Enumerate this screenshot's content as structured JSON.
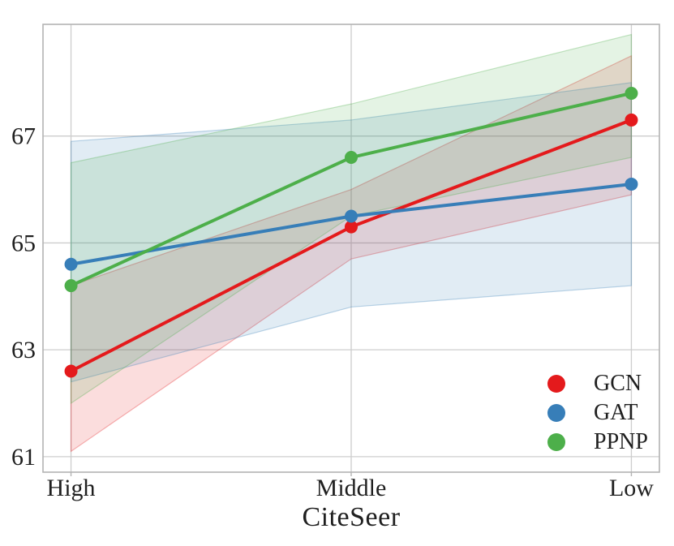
{
  "figure": {
    "background": "#ffffff",
    "text_color": "#1f1f1f",
    "grid_color": "#cdcdcd",
    "spine_color": "#b3b3b3",
    "band_fill_opacity": 0.15,
    "band_edge_opacity": 0.32
  },
  "chart_data": {
    "type": "line",
    "categories": [
      "High",
      "Middle",
      "Low"
    ],
    "title": "",
    "xlabel": "CiteSeer",
    "ylabel": "",
    "y_ticks": [
      61,
      63,
      65,
      67
    ],
    "ylim": [
      60.71,
      69.09
    ],
    "grid": true,
    "legend_position": "lower-right",
    "series": [
      {
        "name": "GCN",
        "color": "#e41a1c",
        "values": [
          62.6,
          65.3,
          67.3
        ],
        "band_lower": [
          61.1,
          64.7,
          65.9
        ],
        "band_upper": [
          64.2,
          66.0,
          68.5
        ]
      },
      {
        "name": "GAT",
        "color": "#377eb8",
        "values": [
          64.6,
          65.5,
          66.1
        ],
        "band_lower": [
          62.4,
          63.8,
          64.2
        ],
        "band_upper": [
          66.9,
          67.3,
          68.0
        ]
      },
      {
        "name": "PPNP",
        "color": "#4daf4a",
        "values": [
          64.2,
          66.6,
          67.8
        ],
        "band_lower": [
          62.0,
          65.5,
          66.6
        ],
        "band_upper": [
          66.5,
          67.6,
          68.9
        ]
      }
    ]
  }
}
